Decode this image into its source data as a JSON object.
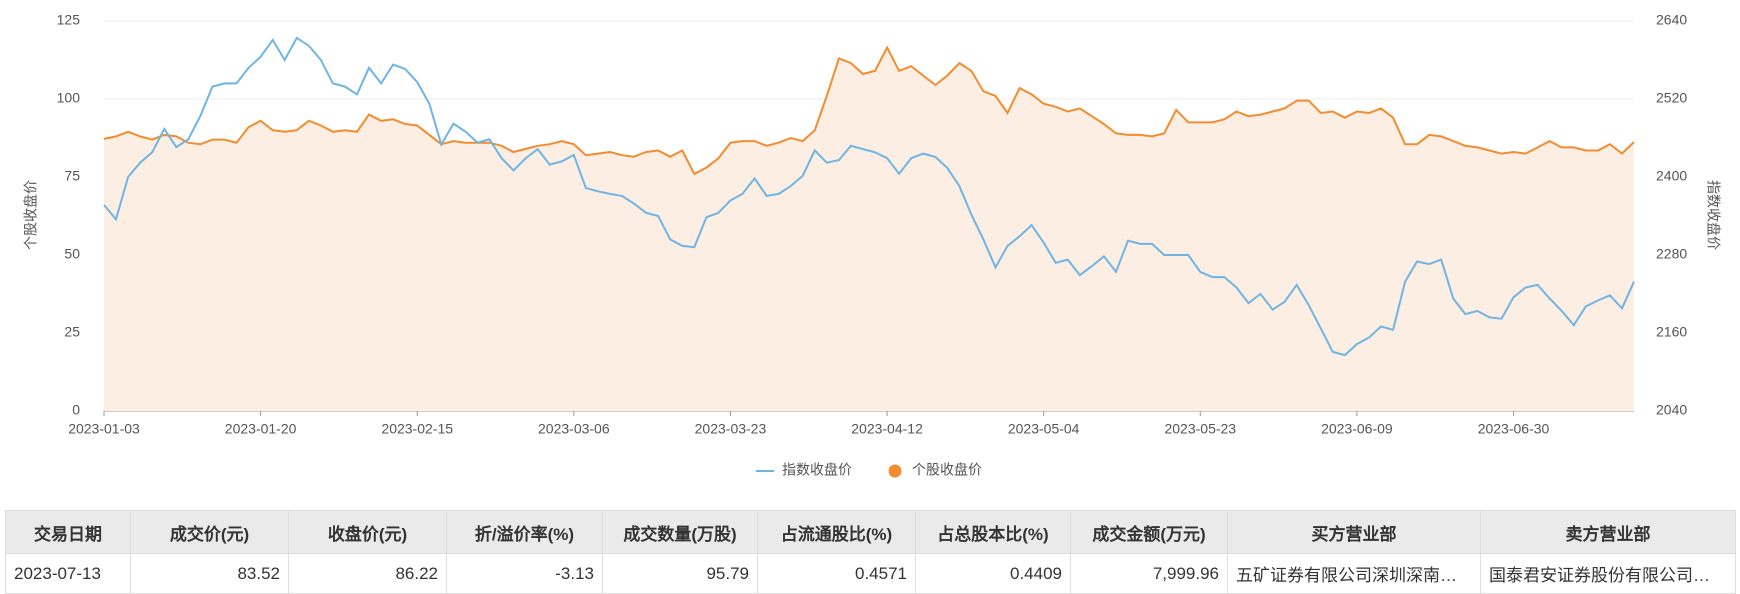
{
  "chart_data": {
    "type": "line-area",
    "y_label": "个股收盘价",
    "y2_label": "指数收盘价",
    "categories": [
      "2023-01-03",
      null,
      null,
      null,
      null,
      null,
      null,
      null,
      null,
      null,
      null,
      null,
      null,
      "2023-01-20",
      null,
      null,
      null,
      null,
      null,
      null,
      null,
      null,
      null,
      null,
      null,
      null,
      "2023-02-15",
      null,
      null,
      null,
      null,
      null,
      null,
      null,
      null,
      null,
      null,
      null,
      null,
      "2023-03-06",
      null,
      null,
      null,
      null,
      null,
      null,
      null,
      null,
      null,
      null,
      null,
      null,
      "2023-03-23",
      null,
      null,
      null,
      null,
      null,
      null,
      null,
      null,
      null,
      null,
      null,
      null,
      "2023-04-12",
      null,
      null,
      null,
      null,
      null,
      null,
      null,
      null,
      null,
      null,
      null,
      null,
      "2023-05-04",
      null,
      null,
      null,
      null,
      null,
      null,
      null,
      null,
      null,
      null,
      null,
      null,
      "2023-05-23",
      null,
      null,
      null,
      null,
      null,
      null,
      null,
      null,
      null,
      null,
      null,
      null,
      "2023-06-09",
      null,
      null,
      null,
      null,
      null,
      null,
      null,
      null,
      null,
      null,
      null,
      null,
      "2023-06-30",
      null,
      null,
      null,
      null,
      null,
      null,
      null,
      null,
      null,
      null
    ],
    "ylim": [
      0,
      125
    ],
    "yticks": [
      0,
      25,
      50,
      75,
      100,
      125
    ],
    "y2lim": [
      2040,
      2640
    ],
    "y2ticks": [
      2040,
      2160,
      2280,
      2400,
      2520,
      2640
    ],
    "grid": true,
    "series": [
      {
        "name": "指数收盘价",
        "color": "#6fb5e3",
        "style": "line",
        "axis": "y2",
        "values": [
          2357,
          2335,
          2400,
          2422,
          2438,
          2474,
          2446,
          2458,
          2494,
          2539,
          2544,
          2544,
          2568,
          2585,
          2611,
          2580,
          2614,
          2602,
          2580,
          2544,
          2539,
          2527,
          2568,
          2544,
          2573,
          2566,
          2546,
          2513,
          2450,
          2482,
          2470,
          2453,
          2458,
          2429,
          2410,
          2429,
          2443,
          2419,
          2424,
          2434,
          2383,
          2378,
          2374,
          2371,
          2359,
          2345,
          2340,
          2304,
          2294,
          2292,
          2338,
          2345,
          2364,
          2374,
          2398,
          2371,
          2374,
          2386,
          2402,
          2441,
          2422,
          2426,
          2448,
          2443,
          2438,
          2429,
          2405,
          2429,
          2436,
          2431,
          2414,
          2386,
          2342,
          2304,
          2261,
          2294,
          2309,
          2326,
          2299,
          2268,
          2273,
          2249,
          2263,
          2278,
          2254,
          2302,
          2297,
          2297,
          2280,
          2280,
          2280,
          2254,
          2246,
          2246,
          2230,
          2206,
          2220,
          2196,
          2208,
          2234,
          2203,
          2167,
          2131,
          2126,
          2143,
          2153,
          2170,
          2165,
          2239,
          2270,
          2266,
          2273,
          2213,
          2189,
          2194,
          2184,
          2182,
          2215,
          2230,
          2234,
          2213,
          2194,
          2172,
          2201,
          2210,
          2218,
          2198,
          2239
        ]
      },
      {
        "name": "个股收盘价",
        "color": "#f28c2f",
        "style": "area",
        "fill": "#fdeee3",
        "values": [
          87.2,
          88,
          89.5,
          88,
          87,
          88.5,
          88,
          86,
          85.5,
          87,
          87,
          86,
          91,
          93,
          90,
          89.5,
          90,
          93,
          91.5,
          89.5,
          90,
          89.5,
          95,
          93,
          93.5,
          92,
          91.5,
          88.5,
          85.5,
          86.5,
          86,
          86,
          86,
          85,
          83,
          84,
          85,
          85.5,
          86.5,
          85.5,
          82,
          82.5,
          83,
          82,
          81.5,
          83,
          83.5,
          81.5,
          83.5,
          76,
          78,
          81,
          86,
          86.5,
          86.5,
          85,
          86,
          87.5,
          86.5,
          90,
          101,
          113,
          111.5,
          108,
          109,
          116.5,
          109,
          110.5,
          107.5,
          104.5,
          107.5,
          111.5,
          109,
          102.5,
          101,
          95.5,
          103.5,
          101.5,
          98.5,
          97.5,
          96,
          97,
          94.5,
          92,
          89,
          88.5,
          88.5,
          88,
          89,
          96.5,
          92.5,
          92.5,
          92.5,
          93.5,
          96,
          94.5,
          95,
          96,
          97,
          99.5,
          99.5,
          95.5,
          96,
          94,
          96,
          95.5,
          97,
          94,
          85.5,
          85.5,
          88.5,
          88,
          86.5,
          85,
          84.5,
          83.5,
          82.5,
          83,
          82.5,
          84.5,
          86.5,
          84.5,
          84.5,
          83.5,
          83.5,
          85.5,
          82.5,
          86.22
        ]
      }
    ]
  },
  "table": {
    "header": [
      "交易日期",
      "成交价(元)",
      "收盘价(元)",
      "折/溢价率(%)",
      "成交数量(万股)",
      "占流通股比(%)",
      "占总股本比(%)",
      "成交金额(万元)",
      "买方营业部",
      "卖方营业部"
    ],
    "rows": [
      [
        "2023-07-13",
        "83.52",
        "86.22",
        "-3.13",
        "95.79",
        "0.4571",
        "0.4409",
        "7,999.96",
        "五矿证券有限公司深圳深南…",
        "国泰君安证券股份有限公司…"
      ]
    ]
  }
}
